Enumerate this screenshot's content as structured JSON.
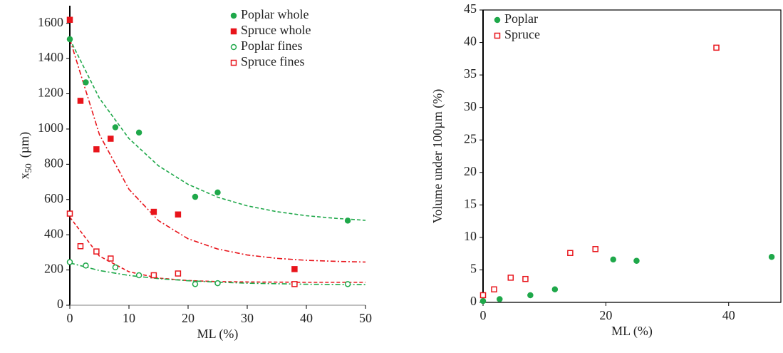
{
  "chart_data": [
    {
      "type": "scatter",
      "x_label": "ML (%)",
      "y_label": "x",
      "y_label_sub": "50",
      "y_label_unit": "(µm)",
      "xlim": [
        0,
        50
      ],
      "xticks": [
        0,
        10,
        20,
        30,
        40,
        50
      ],
      "ylim": [
        0,
        1700
      ],
      "yticks": [
        0,
        200,
        400,
        600,
        800,
        1000,
        1200,
        1400,
        1600
      ],
      "legend": "upper right",
      "series": [
        {
          "name": "Poplar whole",
          "color": "#1fa84a",
          "marker": "circle",
          "filled": true,
          "x": [
            0,
            2.7,
            7.7,
            11.7,
            21.2,
            25,
            47
          ],
          "values": [
            1510,
            1265,
            1010,
            980,
            615,
            640,
            480
          ]
        },
        {
          "name": "Spruce whole",
          "color": "#e8141b",
          "marker": "square",
          "filled": true,
          "x": [
            0,
            1.8,
            4.5,
            6.9,
            14.2,
            18.3,
            38
          ],
          "values": [
            1620,
            1160,
            885,
            945,
            530,
            515,
            205
          ]
        },
        {
          "name": "Poplar fines",
          "color": "#1fa84a",
          "marker": "circle",
          "filled": false,
          "x": [
            0,
            2.7,
            7.7,
            11.7,
            21.2,
            25,
            47
          ],
          "values": [
            245,
            225,
            215,
            170,
            120,
            125,
            120
          ]
        },
        {
          "name": "Spruce fines",
          "color": "#e8141b",
          "marker": "square",
          "filled": false,
          "x": [
            0,
            1.8,
            4.5,
            6.9,
            14.2,
            18.3,
            38
          ],
          "values": [
            520,
            335,
            305,
            265,
            170,
            180,
            120
          ]
        }
      ],
      "trendlines": [
        {
          "color": "#1fa84a",
          "dash": "5 3",
          "x": [
            0,
            5,
            10,
            15,
            20,
            25,
            30,
            35,
            40,
            45,
            50
          ],
          "values": [
            1510,
            1175,
            946,
            791,
            686,
            613,
            564,
            531,
            508,
            493,
            482
          ]
        },
        {
          "color": "#e8141b",
          "dash": "7 3 2 3",
          "x": [
            0,
            5,
            10,
            15,
            20,
            25,
            30,
            35,
            40,
            45,
            50
          ],
          "values": [
            1510,
            969,
            658,
            480,
            377,
            319,
            285,
            266,
            255,
            249,
            245
          ]
        },
        {
          "color": "#e8141b",
          "dash": "5 3",
          "x": [
            0,
            5,
            10,
            15,
            20,
            25,
            30,
            35,
            40,
            45,
            50
          ],
          "values": [
            500,
            279,
            190,
            154,
            140,
            134,
            132,
            131,
            130,
            130,
            130
          ]
        },
        {
          "color": "#1fa84a",
          "dash": "7 3 2 3",
          "x": [
            0,
            5,
            10,
            15,
            20,
            25,
            30,
            35,
            40,
            45,
            50
          ],
          "values": [
            240,
            197,
            169,
            151,
            139,
            131,
            125,
            122,
            119,
            118,
            117
          ]
        }
      ]
    },
    {
      "type": "scatter",
      "x_label": "ML (%)",
      "y_label": "Volume under 100µm (%)",
      "xlim": [
        0,
        48.5
      ],
      "xticks": [
        0,
        20,
        40
      ],
      "ylim": [
        0,
        45
      ],
      "yticks": [
        0,
        5,
        10,
        15,
        20,
        25,
        30,
        35,
        40,
        45
      ],
      "legend": "upper left",
      "series": [
        {
          "name": "Poplar",
          "color": "#1fa84a",
          "marker": "circle",
          "filled": true,
          "x": [
            0,
            2.7,
            7.7,
            11.7,
            21.2,
            25,
            47
          ],
          "values": [
            0.2,
            0.5,
            1.1,
            2,
            6.6,
            6.4,
            7
          ]
        },
        {
          "name": "Spruce",
          "color": "#e8141b",
          "marker": "square",
          "filled": false,
          "x": [
            0,
            1.8,
            4.5,
            6.9,
            14.2,
            18.3,
            38
          ],
          "values": [
            1.1,
            2,
            3.8,
            3.6,
            7.6,
            8.2,
            39.2
          ]
        }
      ]
    }
  ]
}
